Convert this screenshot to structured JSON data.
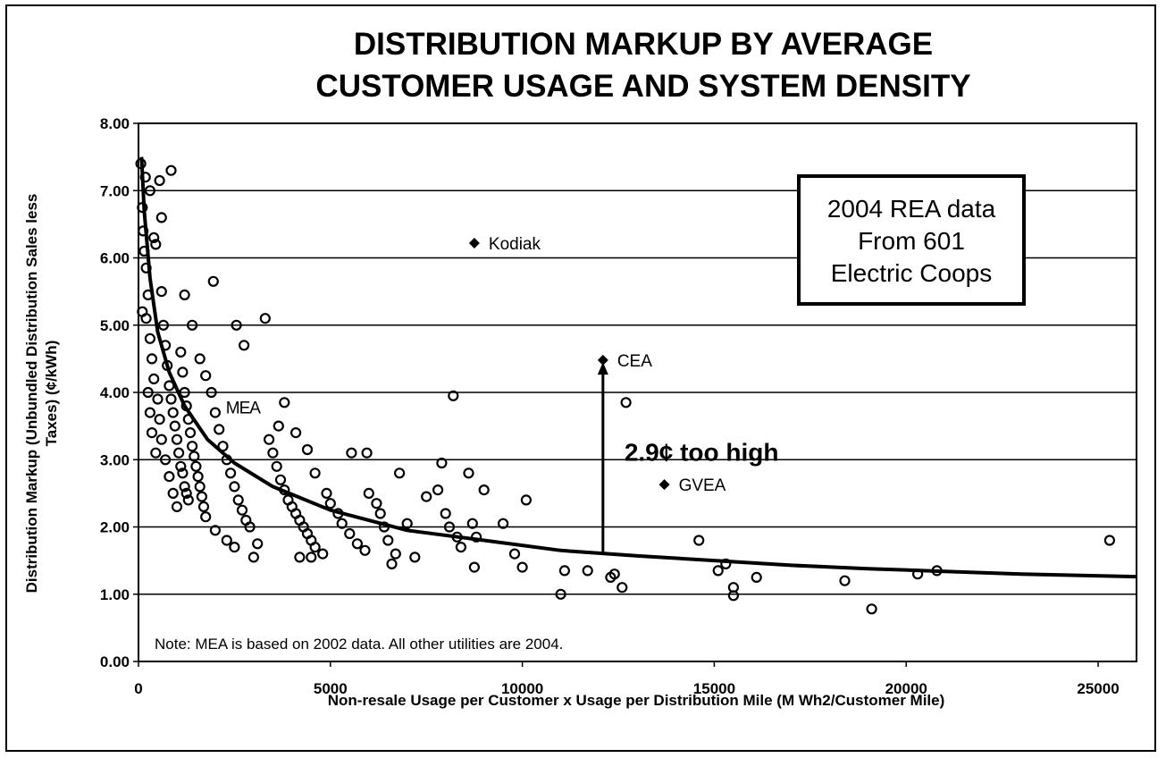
{
  "chart_data": {
    "type": "scatter",
    "title_lines": [
      "DISTRIBUTION MARKUP BY AVERAGE",
      "CUSTOMER USAGE AND SYSTEM DENSITY"
    ],
    "xlabel": "Non-resale Usage per Customer x Usage per Distribution Mile (M Wh2/Customer Mile)",
    "ylabel_lines": [
      "Distribution Markup (Unbundled Distribution Sales less",
      "Taxes) (¢/kWh)"
    ],
    "xlim": [
      0,
      26000
    ],
    "ylim": [
      0,
      8
    ],
    "x_ticks": [
      "0",
      "5000",
      "10000",
      "15000",
      "20000",
      "25000"
    ],
    "x_tick_values": [
      0,
      5000,
      10000,
      15000,
      20000,
      25000
    ],
    "y_ticks": [
      "0.00",
      "1.00",
      "2.00",
      "3.00",
      "4.00",
      "5.00",
      "6.00",
      "7.00",
      "8.00"
    ],
    "y_tick_values": [
      0,
      1,
      2,
      3,
      4,
      5,
      6,
      7,
      8
    ],
    "grid": "horizontal",
    "info_box": [
      "2004 REA data",
      "From 601",
      "Electric Coops"
    ],
    "note": "Note:  MEA is based on 2002 data.  All other utilities are 2004.",
    "arrow_annotation": {
      "label": "2.9¢ too high",
      "x": 12100,
      "y_from": 1.6,
      "y_to": 4.45
    },
    "highlighted": [
      {
        "name": "Kodiak",
        "x": 8750,
        "y": 6.22
      },
      {
        "name": "CEA",
        "x": 12100,
        "y": 4.48
      },
      {
        "name": "GVEA",
        "x": 13700,
        "y": 2.63
      },
      {
        "name": "MEA",
        "x": 1950,
        "y": 3.78
      }
    ],
    "trendline": {
      "x": [
        80,
        150,
        300,
        500,
        800,
        1200,
        1800,
        2500,
        3500,
        5000,
        7000,
        9000,
        11000,
        13000,
        15000,
        17000,
        19000,
        21000,
        23000,
        26000
      ],
      "y": [
        7.5,
        6.7,
        5.7,
        4.9,
        4.3,
        3.8,
        3.3,
        2.95,
        2.6,
        2.25,
        1.95,
        1.8,
        1.65,
        1.57,
        1.5,
        1.43,
        1.38,
        1.34,
        1.3,
        1.26
      ]
    },
    "points": [
      [
        60,
        7.4
      ],
      [
        100,
        6.75
      ],
      [
        150,
        6.1
      ],
      [
        200,
        5.85
      ],
      [
        250,
        5.45
      ],
      [
        120,
        6.4
      ],
      [
        180,
        7.2
      ],
      [
        300,
        7.0
      ],
      [
        400,
        6.3
      ],
      [
        450,
        6.2
      ],
      [
        550,
        7.15
      ],
      [
        600,
        6.6
      ],
      [
        850,
        7.3
      ],
      [
        100,
        5.2
      ],
      [
        200,
        5.1
      ],
      [
        300,
        4.8
      ],
      [
        350,
        4.5
      ],
      [
        400,
        4.2
      ],
      [
        500,
        3.9
      ],
      [
        550,
        3.6
      ],
      [
        600,
        3.3
      ],
      [
        700,
        3.0
      ],
      [
        800,
        2.75
      ],
      [
        900,
        2.5
      ],
      [
        1000,
        2.3
      ],
      [
        250,
        4.0
      ],
      [
        300,
        3.7
      ],
      [
        350,
        3.4
      ],
      [
        450,
        3.1
      ],
      [
        600,
        5.5
      ],
      [
        650,
        5.0
      ],
      [
        700,
        4.7
      ],
      [
        750,
        4.4
      ],
      [
        800,
        4.1
      ],
      [
        850,
        3.9
      ],
      [
        900,
        3.7
      ],
      [
        950,
        3.5
      ],
      [
        1000,
        3.3
      ],
      [
        1050,
        3.1
      ],
      [
        1100,
        2.9
      ],
      [
        1150,
        2.8
      ],
      [
        1200,
        2.6
      ],
      [
        1250,
        2.5
      ],
      [
        1300,
        2.4
      ],
      [
        1100,
        4.6
      ],
      [
        1150,
        4.3
      ],
      [
        1200,
        4.0
      ],
      [
        1250,
        3.8
      ],
      [
        1300,
        3.6
      ],
      [
        1350,
        3.4
      ],
      [
        1400,
        3.2
      ],
      [
        1450,
        3.05
      ],
      [
        1500,
        2.9
      ],
      [
        1550,
        2.75
      ],
      [
        1600,
        2.6
      ],
      [
        1650,
        2.45
      ],
      [
        1700,
        2.3
      ],
      [
        1750,
        2.15
      ],
      [
        1200,
        5.45
      ],
      [
        1400,
        5.0
      ],
      [
        1600,
        4.5
      ],
      [
        1750,
        4.25
      ],
      [
        1900,
        4.0
      ],
      [
        1950,
        5.65
      ],
      [
        2000,
        3.7
      ],
      [
        2100,
        3.45
      ],
      [
        2200,
        3.2
      ],
      [
        2300,
        3.0
      ],
      [
        2400,
        2.8
      ],
      [
        2500,
        2.6
      ],
      [
        2600,
        2.4
      ],
      [
        2700,
        2.25
      ],
      [
        2800,
        2.1
      ],
      [
        2900,
        2.0
      ],
      [
        2000,
        1.95
      ],
      [
        2300,
        1.8
      ],
      [
        2500,
        1.7
      ],
      [
        2550,
        5.0
      ],
      [
        2750,
        4.7
      ],
      [
        3000,
        1.55
      ],
      [
        3100,
        1.75
      ],
      [
        3300,
        5.1
      ],
      [
        3400,
        3.3
      ],
      [
        3500,
        3.1
      ],
      [
        3600,
        2.9
      ],
      [
        3700,
        2.7
      ],
      [
        3800,
        2.55
      ],
      [
        3900,
        2.4
      ],
      [
        4000,
        2.3
      ],
      [
        4100,
        2.2
      ],
      [
        4200,
        2.1
      ],
      [
        4300,
        2.0
      ],
      [
        4400,
        1.9
      ],
      [
        4500,
        1.8
      ],
      [
        4600,
        1.7
      ],
      [
        4800,
        1.6
      ],
      [
        4200,
        1.55
      ],
      [
        4500,
        1.55
      ],
      [
        3800,
        3.85
      ],
      [
        3650,
        3.5
      ],
      [
        4100,
        3.4
      ],
      [
        4400,
        3.15
      ],
      [
        4600,
        2.8
      ],
      [
        4900,
        2.5
      ],
      [
        5000,
        2.35
      ],
      [
        5200,
        2.2
      ],
      [
        5300,
        2.05
      ],
      [
        5500,
        1.9
      ],
      [
        5700,
        1.75
      ],
      [
        5900,
        1.65
      ],
      [
        5550,
        3.1
      ],
      [
        5950,
        3.1
      ],
      [
        6000,
        2.5
      ],
      [
        6200,
        2.35
      ],
      [
        6300,
        2.2
      ],
      [
        6400,
        2.0
      ],
      [
        6500,
        1.8
      ],
      [
        6700,
        1.6
      ],
      [
        6600,
        1.45
      ],
      [
        6800,
        2.8
      ],
      [
        7000,
        2.05
      ],
      [
        7200,
        1.55
      ],
      [
        7500,
        2.45
      ],
      [
        7800,
        2.55
      ],
      [
        7900,
        2.95
      ],
      [
        8000,
        2.2
      ],
      [
        8100,
        2.0
      ],
      [
        8300,
        1.85
      ],
      [
        8400,
        1.7
      ],
      [
        8200,
        3.95
      ],
      [
        8600,
        2.8
      ],
      [
        8700,
        2.05
      ],
      [
        8800,
        1.85
      ],
      [
        8750,
        1.4
      ],
      [
        9000,
        2.55
      ],
      [
        9500,
        2.05
      ],
      [
        9800,
        1.6
      ],
      [
        10000,
        1.4
      ],
      [
        10100,
        2.4
      ],
      [
        11000,
        1.0
      ],
      [
        11100,
        1.35
      ],
      [
        11700,
        1.35
      ],
      [
        12300,
        1.25
      ],
      [
        12400,
        1.3
      ],
      [
        12600,
        1.1
      ],
      [
        12700,
        3.85
      ],
      [
        14600,
        1.8
      ],
      [
        15100,
        1.35
      ],
      [
        15300,
        1.45
      ],
      [
        15500,
        1.1
      ],
      [
        15500,
        0.98
      ],
      [
        16100,
        1.25
      ],
      [
        18400,
        1.2
      ],
      [
        19100,
        0.78
      ],
      [
        20300,
        1.3
      ],
      [
        20800,
        1.35
      ],
      [
        25300,
        1.8
      ]
    ]
  }
}
